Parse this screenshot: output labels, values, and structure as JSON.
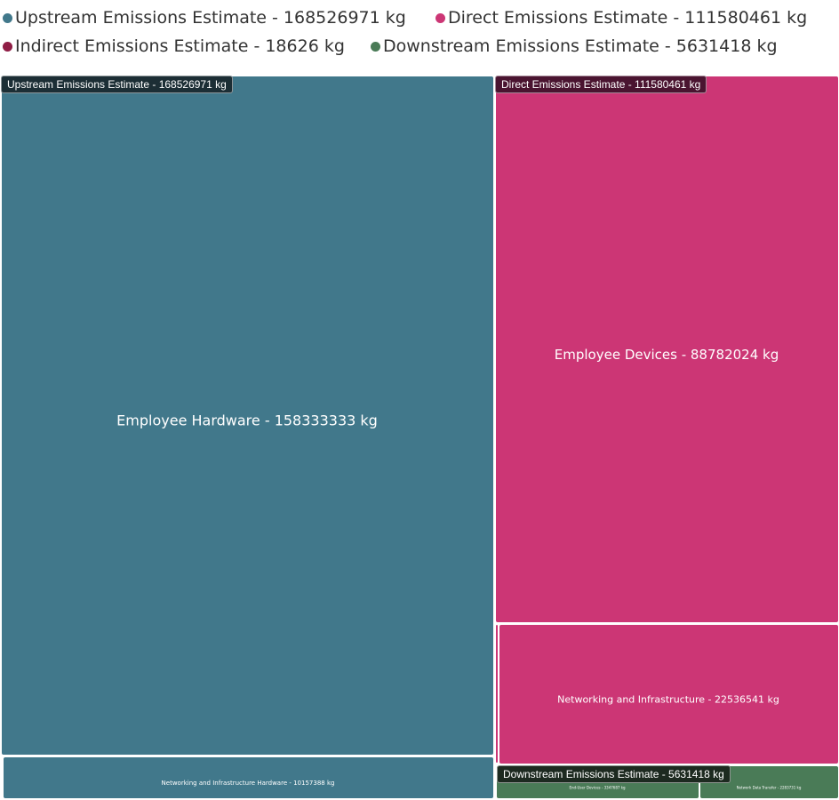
{
  "chart_data": {
    "type": "treemap",
    "legend_position": "top-left",
    "groups": [
      {
        "name": "Upstream Emissions Estimate - 168526971 kg",
        "value": 168526971,
        "color": "#41788b",
        "children": [
          {
            "name": "Employee Hardware - 158333333 kg",
            "value": 158333333
          },
          {
            "name": "Networking and Infrastructure Hardware - 10157388 kg",
            "value": 10157388
          }
        ]
      },
      {
        "name": "Direct Emissions Estimate - 111580461 kg",
        "value": 111580461,
        "color": "#cc3675",
        "children": [
          {
            "name": "Employee Devices - 88782024 kg",
            "value": 88782024
          },
          {
            "name": "Networking and Infrastructure - 22536541 kg",
            "value": 22536541
          }
        ]
      },
      {
        "name": "Indirect Emissions Estimate - 18626 kg",
        "value": 18626,
        "color": "#8f1d45",
        "children": []
      },
      {
        "name": "Downstream Emissions Estimate - 5631418 kg",
        "value": 5631418,
        "color": "#4a7b57",
        "children": [
          {
            "name": "End-User Devices - 3347687 kg",
            "value": 3347687
          },
          {
            "name": "Network Data Transfer - 2283731 kg",
            "value": 2283731
          }
        ]
      }
    ]
  }
}
